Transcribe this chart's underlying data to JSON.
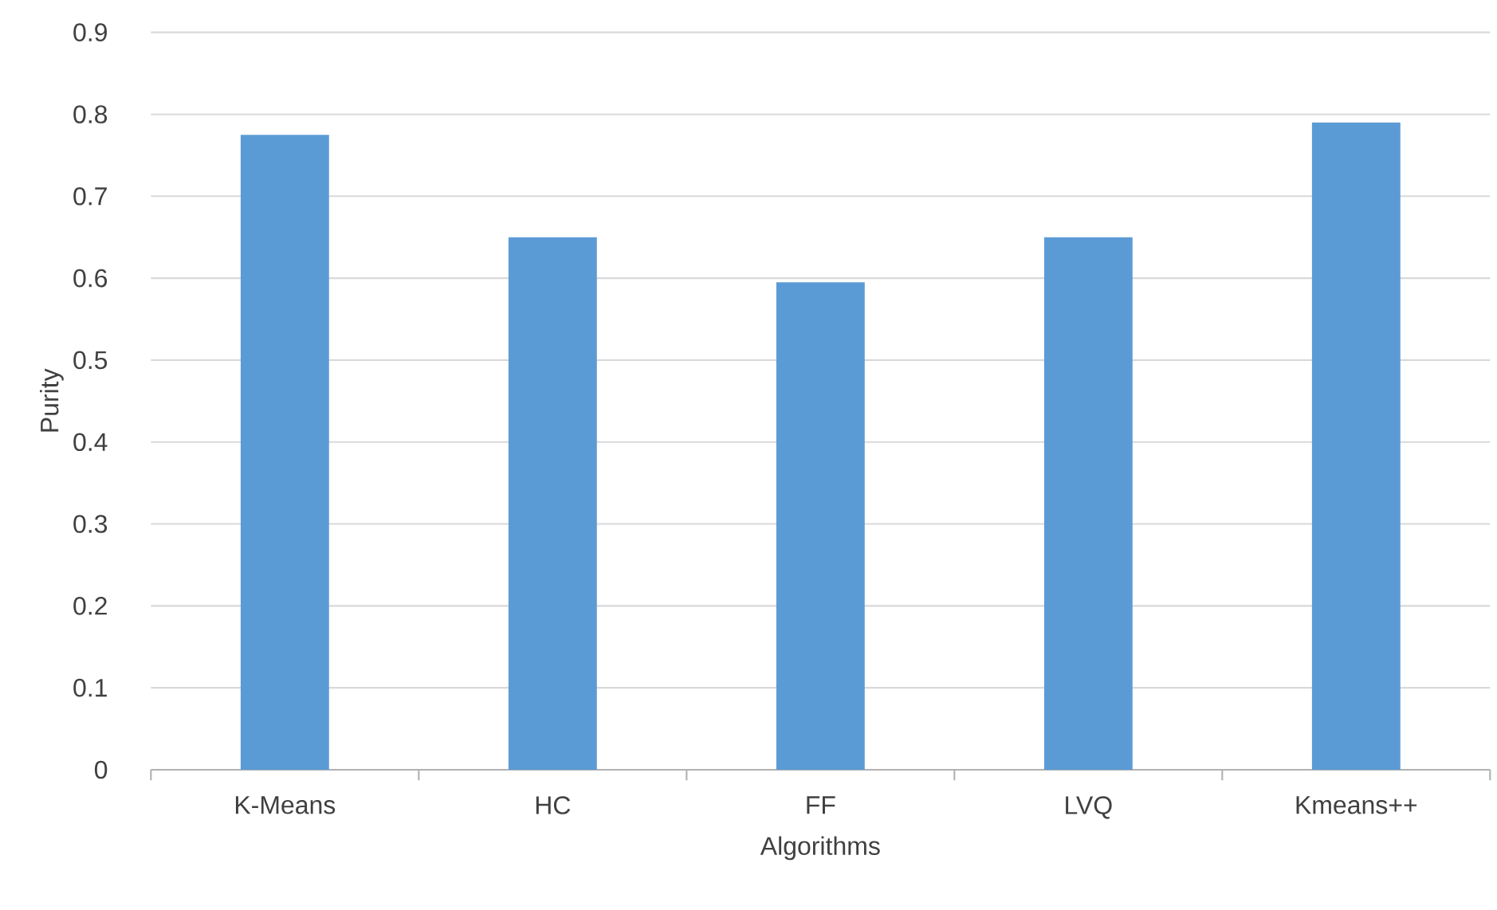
{
  "chart_data": {
    "type": "bar",
    "xlabel": "Algorithms",
    "ylabel": "Purity",
    "categories": [
      "K-Means",
      "HC",
      "FF",
      "LVQ",
      "Kmeans++"
    ],
    "values": [
      0.775,
      0.65,
      0.595,
      0.65,
      0.79
    ],
    "color": "#5b9bd5",
    "ylim": [
      0,
      0.9
    ],
    "yticks": [
      0,
      0.1,
      0.2,
      0.3,
      0.4,
      0.5,
      0.6,
      0.7,
      0.8,
      0.9
    ],
    "grid": "y"
  }
}
